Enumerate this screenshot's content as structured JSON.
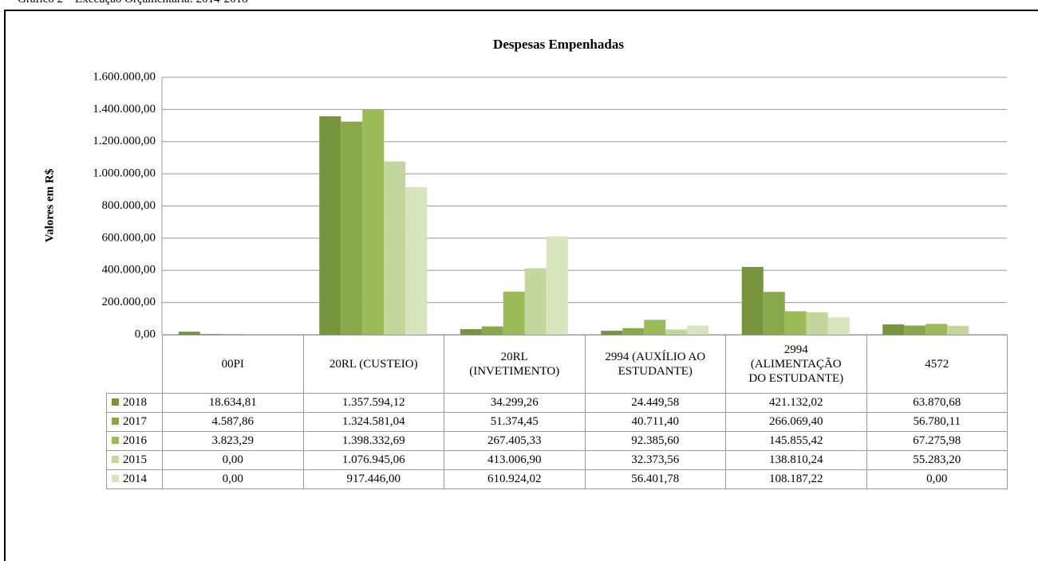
{
  "caption": "Gráfico 2 – Execução Orçamentária: 2014-2018",
  "chart_data": {
    "type": "bar",
    "title": "Despesas Empenhadas",
    "y_label": "Valores em R$",
    "categories": [
      "00PI",
      "20RL (CUSTEIO)",
      "20RL (INVETIMENTO)",
      "2994 (AUXÍLIO AO ESTUDANTE)",
      "2994 (ALIMENTAÇÃO DO ESTUDANTE)",
      "4572"
    ],
    "series": [
      {
        "name": "2018",
        "color": "#77933c",
        "values": [
          18634.81,
          1357594.12,
          34299.26,
          24449.58,
          421132.02,
          63870.68
        ],
        "value_labels": [
          "18.634,81",
          "1.357.594,12",
          "34.299,26",
          "24.449,58",
          "421.132,02",
          "63.870,68"
        ]
      },
      {
        "name": "2017",
        "color": "#8aa84b",
        "values": [
          4587.86,
          1324581.04,
          51374.45,
          40711.4,
          266069.4,
          56780.11
        ],
        "value_labels": [
          "4.587,86",
          "1.324.581,04",
          "51.374,45",
          "40.711,40",
          "266.069,40",
          "56.780,11"
        ]
      },
      {
        "name": "2016",
        "color": "#9bbb59",
        "values": [
          3823.29,
          1398332.69,
          267405.33,
          92385.6,
          145855.42,
          67275.98
        ],
        "value_labels": [
          "3.823,29",
          "1.398.332,69",
          "267.405,33",
          "92.385,60",
          "145.855,42",
          "67.275,98"
        ]
      },
      {
        "name": "2015",
        "color": "#c3d69b",
        "values": [
          0,
          1076945.06,
          413006.9,
          32373.56,
          138810.24,
          55283.2
        ],
        "value_labels": [
          "0,00",
          "1.076.945,06",
          "413.006,90",
          "32.373,56",
          "138.810,24",
          "55.283,20"
        ]
      },
      {
        "name": "2014",
        "color": "#d7e4bd",
        "values": [
          0,
          917446.0,
          610924.02,
          56401.78,
          108187.22,
          0
        ],
        "value_labels": [
          "0,00",
          "917.446,00",
          "610.924,02",
          "56.401,78",
          "108.187,22",
          "0,00"
        ]
      }
    ],
    "ylim": [
      0,
      1600000
    ],
    "yticks": [
      {
        "value": 0,
        "label": "0,00"
      },
      {
        "value": 200000,
        "label": "200.000,00"
      },
      {
        "value": 400000,
        "label": "400.000,00"
      },
      {
        "value": 600000,
        "label": "600.000,00"
      },
      {
        "value": 800000,
        "label": "800.000,00"
      },
      {
        "value": 1000000,
        "label": "1.000.000,00"
      },
      {
        "value": 1200000,
        "label": "1.200.000,00"
      },
      {
        "value": 1400000,
        "label": "1.400.000,00"
      },
      {
        "value": 1600000,
        "label": "1.600.000,00"
      }
    ],
    "grid": true
  }
}
